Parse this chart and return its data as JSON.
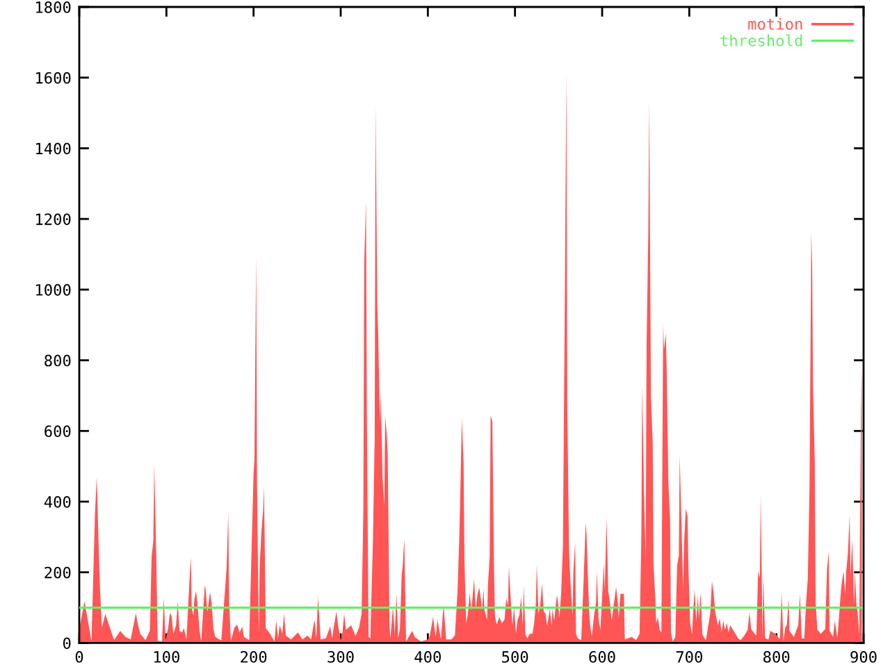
{
  "chart_data": {
    "type": "area",
    "xlim": [
      0,
      900
    ],
    "ylim": [
      0,
      1800
    ],
    "xticks": [
      0,
      100,
      200,
      300,
      400,
      500,
      600,
      700,
      800,
      900
    ],
    "yticks": [
      0,
      200,
      400,
      600,
      800,
      1000,
      1200,
      1400,
      1600,
      1800
    ],
    "legend": "top right",
    "series": [
      {
        "name": "motion",
        "color": "#ff5555",
        "x": [
          0,
          6,
          9,
          14,
          18,
          20,
          23,
          24,
          26,
          30,
          32,
          36,
          40,
          47,
          53,
          59,
          65,
          67,
          70,
          76,
          81,
          83,
          85,
          86,
          88,
          90,
          95,
          97,
          99,
          102,
          104,
          106,
          108,
          111,
          113,
          115,
          118,
          120,
          123,
          127,
          128,
          129,
          131,
          132,
          134,
          136,
          138,
          140,
          144,
          145,
          147,
          150,
          152,
          154,
          156,
          163,
          169,
          171,
          172,
          174,
          178,
          181,
          184,
          187,
          189,
          195,
          200,
          201,
          203,
          204,
          206,
          207,
          209,
          211,
          212,
          214,
          219,
          224,
          226,
          228,
          230,
          233,
          235,
          237,
          243,
          251,
          256,
          262,
          266,
          270,
          272,
          274,
          277,
          283,
          288,
          290,
          295,
          297,
          300,
          302,
          304,
          306,
          312,
          317,
          321,
          324,
          326,
          327,
          329,
          330,
          332,
          334,
          337,
          339,
          340,
          342,
          343,
          345,
          346,
          348,
          350,
          351,
          353,
          354,
          356,
          357,
          360,
          362,
          364,
          366,
          368,
          370,
          371,
          373,
          375,
          382,
          385,
          392,
          400,
          402,
          406,
          409,
          411,
          415,
          418,
          421,
          427,
          431,
          434,
          436,
          437,
          439,
          441,
          442,
          444,
          446,
          448,
          450,
          453,
          455,
          457,
          459,
          461,
          462,
          464,
          465,
          468,
          469,
          471,
          472,
          474,
          476,
          477,
          479,
          482,
          485,
          488,
          490,
          492,
          493,
          495,
          497,
          499,
          501,
          503,
          505,
          507,
          509,
          510,
          512,
          514,
          517,
          520,
          522,
          524,
          525,
          527,
          529,
          531,
          533,
          535,
          537,
          540,
          542,
          543,
          545,
          548,
          549,
          551,
          553,
          555,
          557,
          559,
          560,
          562,
          563,
          566,
          567,
          569,
          570,
          572,
          576,
          579,
          581,
          582,
          585,
          586,
          588,
          591,
          593,
          594,
          596,
          598,
          602,
          603,
          605,
          607,
          609,
          611,
          616,
          618,
          619,
          621,
          625,
          626,
          634,
          639,
          643,
          645,
          646,
          648,
          650,
          651,
          653,
          654,
          656,
          658,
          659,
          661,
          662,
          664,
          666,
          668,
          670,
          671,
          673,
          674,
          676,
          678,
          679,
          681,
          684,
          686,
          688,
          689,
          691,
          693,
          694,
          696,
          698,
          699,
          701,
          703,
          706,
          708,
          710,
          711,
          713,
          715,
          719,
          724,
          726,
          728,
          730,
          733,
          735,
          737,
          739,
          741,
          743,
          745,
          747,
          752,
          756,
          759,
          764,
          767,
          769,
          771,
          775,
          777,
          779,
          781,
          782,
          784,
          785,
          787,
          791,
          793,
          799,
          804,
          806,
          808,
          810,
          812,
          814,
          815,
          820,
          825,
          827,
          829,
          832,
          834,
          836,
          838,
          840,
          841,
          842,
          844,
          845,
          847,
          851,
          854,
          856,
          858,
          860,
          861,
          865,
          867,
          870,
          874,
          876,
          877,
          879,
          880,
          882,
          884,
          885,
          887,
          889,
          890,
          892,
          893,
          895,
          897,
          898
        ],
        "values": [
          39,
          118,
          76,
          4,
          365,
          470,
          210,
          144,
          43,
          83,
          66,
          37,
          8,
          34,
          17,
          10,
          85,
          56,
          26,
          8,
          34,
          244,
          290,
          507,
          286,
          6,
          4,
          129,
          8,
          43,
          85,
          76,
          26,
          50,
          118,
          34,
          30,
          42,
          10,
          203,
          243,
          102,
          76,
          121,
          148,
          102,
          34,
          4,
          164,
          152,
          89,
          144,
          109,
          39,
          17,
          7,
          210,
          369,
          113,
          5,
          43,
          52,
          30,
          46,
          17,
          8,
          479,
          518,
          1097,
          447,
          24,
          217,
          316,
          378,
          443,
          42,
          26,
          4,
          63,
          13,
          50,
          26,
          83,
          21,
          10,
          30,
          10,
          21,
          10,
          66,
          13,
          131,
          10,
          13,
          47,
          13,
          89,
          50,
          8,
          30,
          83,
          37,
          50,
          20,
          43,
          83,
          378,
          1080,
          1251,
          650,
          17,
          13,
          293,
          581,
          1522,
          951,
          877,
          621,
          710,
          472,
          388,
          644,
          585,
          529,
          50,
          13,
          102,
          26,
          138,
          13,
          43,
          194,
          214,
          295,
          4,
          34,
          17,
          4,
          10,
          17,
          73,
          17,
          66,
          10,
          109,
          10,
          10,
          21,
          142,
          293,
          394,
          636,
          507,
          236,
          56,
          83,
          142,
          92,
          181,
          96,
          138,
          157,
          122,
          92,
          152,
          92,
          66,
          165,
          247,
          644,
          627,
          201,
          76,
          52,
          73,
          56,
          66,
          126,
          105,
          217,
          129,
          50,
          102,
          26,
          66,
          79,
          129,
          50,
          164,
          24,
          13,
          26,
          26,
          56,
          115,
          223,
          83,
          109,
          168,
          89,
          83,
          47,
          96,
          47,
          96,
          63,
          135,
          122,
          70,
          144,
          273,
          912,
          1618,
          676,
          262,
          203,
          76,
          201,
          286,
          26,
          13,
          8,
          194,
          339,
          312,
          96,
          56,
          17,
          83,
          115,
          203,
          63,
          37,
          227,
          148,
          354,
          148,
          112,
          63,
          159,
          115,
          70,
          139,
          139,
          10,
          17,
          8,
          26,
          310,
          730,
          433,
          234,
          844,
          1165,
          1535,
          696,
          568,
          218,
          129,
          56,
          73,
          37,
          30,
          903,
          831,
          877,
          782,
          457,
          345,
          30,
          4,
          17,
          220,
          247,
          531,
          341,
          152,
          283,
          381,
          358,
          214,
          56,
          24,
          152,
          63,
          135,
          70,
          144,
          24,
          7,
          83,
          175,
          139,
          83,
          50,
          70,
          30,
          63,
          37,
          56,
          30,
          50,
          30,
          13,
          8,
          24,
          37,
          87,
          39,
          26,
          21,
          203,
          184,
          420,
          20,
          194,
          13,
          10,
          34,
          26,
          10,
          142,
          4,
          43,
          52,
          126,
          34,
          17,
          50,
          139,
          13,
          13,
          115,
          181,
          446,
          1165,
          1070,
          723,
          512,
          113,
          37,
          26,
          34,
          39,
          207,
          260,
          34,
          17,
          63,
          13,
          148,
          188,
          203,
          138,
          201,
          253,
          362,
          194,
          293,
          109,
          201,
          102,
          92,
          24,
          650,
          791
        ]
      },
      {
        "name": "threshold",
        "type": "line",
        "color": "#66ee66",
        "x": [
          0,
          898
        ],
        "values": [
          100,
          100
        ]
      }
    ]
  }
}
